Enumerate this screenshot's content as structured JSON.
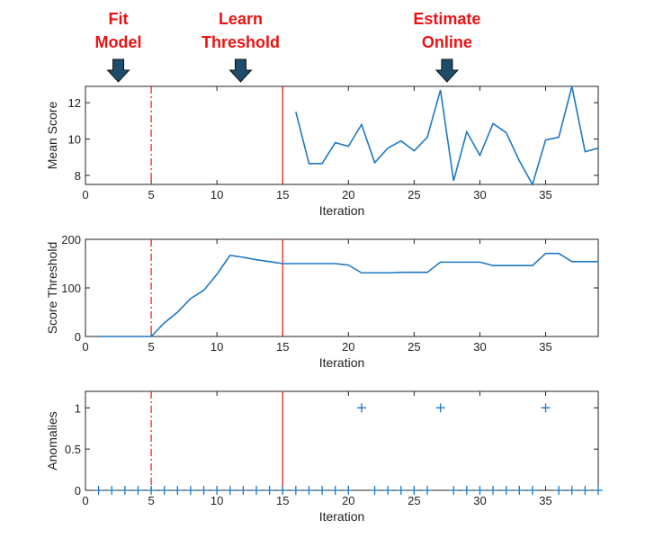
{
  "annotations": [
    {
      "text1": "Fit",
      "text2": "Model",
      "x": 2.5
    },
    {
      "text1": "Learn",
      "text2": "Threshold",
      "x": 11.8
    },
    {
      "text1": "Estimate",
      "text2": "Online",
      "x": 27.5
    }
  ],
  "colors": {
    "line": "#1f77c4",
    "vline": "#ff2020",
    "annotation": "#ee1111",
    "arrow": "#1e4d6b"
  },
  "chart_data": [
    {
      "type": "line",
      "title": "",
      "xlabel": "Iteration",
      "ylabel": "Mean Score",
      "xlim": [
        0,
        39
      ],
      "ylim": [
        7.5,
        12.9
      ],
      "xticks": [
        0,
        5,
        10,
        15,
        20,
        25,
        30,
        35
      ],
      "yticks": [
        8,
        10,
        12
      ],
      "x": [
        16,
        17,
        18,
        19,
        20,
        21,
        22,
        23,
        24,
        25,
        26,
        27,
        28,
        29,
        30,
        31,
        32,
        33,
        34,
        35,
        36,
        37,
        38,
        39
      ],
      "values": [
        11.5,
        8.65,
        8.65,
        9.8,
        9.6,
        10.8,
        8.7,
        9.5,
        9.9,
        9.35,
        10.1,
        12.7,
        7.7,
        10.4,
        9.1,
        10.85,
        10.35,
        8.8,
        7.5,
        9.95,
        10.1,
        12.9,
        9.3,
        9.5
      ],
      "vlines": [
        {
          "x": 5,
          "style": "dashdot"
        },
        {
          "x": 15,
          "style": "solid"
        }
      ]
    },
    {
      "type": "line",
      "title": "",
      "xlabel": "Iteration",
      "ylabel": "Score Threshold",
      "xlim": [
        0,
        39
      ],
      "ylim": [
        0,
        200
      ],
      "xticks": [
        0,
        5,
        10,
        15,
        20,
        25,
        30,
        35
      ],
      "yticks": [
        0,
        100,
        200
      ],
      "x": [
        1,
        2,
        3,
        4,
        5,
        6,
        7,
        8,
        9,
        10,
        11,
        12,
        13,
        14,
        15,
        16,
        17,
        18,
        19,
        20,
        21,
        22,
        23,
        24,
        25,
        26,
        27,
        28,
        29,
        30,
        31,
        32,
        33,
        34,
        35,
        36,
        37,
        38,
        39
      ],
      "values": [
        0,
        0,
        0,
        0,
        0,
        28,
        50,
        78,
        95,
        128,
        167,
        163,
        158,
        154,
        150,
        150,
        150,
        150,
        150,
        147,
        131,
        131,
        131,
        132,
        132,
        132,
        153,
        153,
        153,
        153,
        146,
        146,
        146,
        146,
        171,
        171,
        154,
        154,
        154
      ],
      "vlines": [
        {
          "x": 5,
          "style": "dashdot"
        },
        {
          "x": 15,
          "style": "solid"
        }
      ]
    },
    {
      "type": "scatter",
      "title": "",
      "xlabel": "Iteration",
      "ylabel": "Anomalies",
      "xlim": [
        0,
        39
      ],
      "ylim": [
        0,
        1.2
      ],
      "xticks": [
        0,
        5,
        10,
        15,
        20,
        25,
        30,
        35
      ],
      "yticks": [
        0,
        0.5,
        1
      ],
      "x": [
        1,
        2,
        3,
        4,
        5,
        6,
        7,
        8,
        9,
        10,
        11,
        12,
        13,
        14,
        15,
        16,
        17,
        18,
        19,
        20,
        21,
        22,
        23,
        24,
        25,
        26,
        27,
        28,
        29,
        30,
        31,
        32,
        33,
        34,
        35,
        36,
        37,
        38,
        39
      ],
      "values": [
        0,
        0,
        0,
        0,
        0,
        0,
        0,
        0,
        0,
        0,
        0,
        0,
        0,
        0,
        0,
        0,
        0,
        0,
        0,
        0,
        1,
        0,
        0,
        0,
        0,
        0,
        1,
        0,
        0,
        0,
        0,
        0,
        0,
        0,
        1,
        0,
        0,
        0,
        0
      ],
      "vlines": [
        {
          "x": 5,
          "style": "dashdot"
        },
        {
          "x": 15,
          "style": "solid"
        }
      ]
    }
  ]
}
